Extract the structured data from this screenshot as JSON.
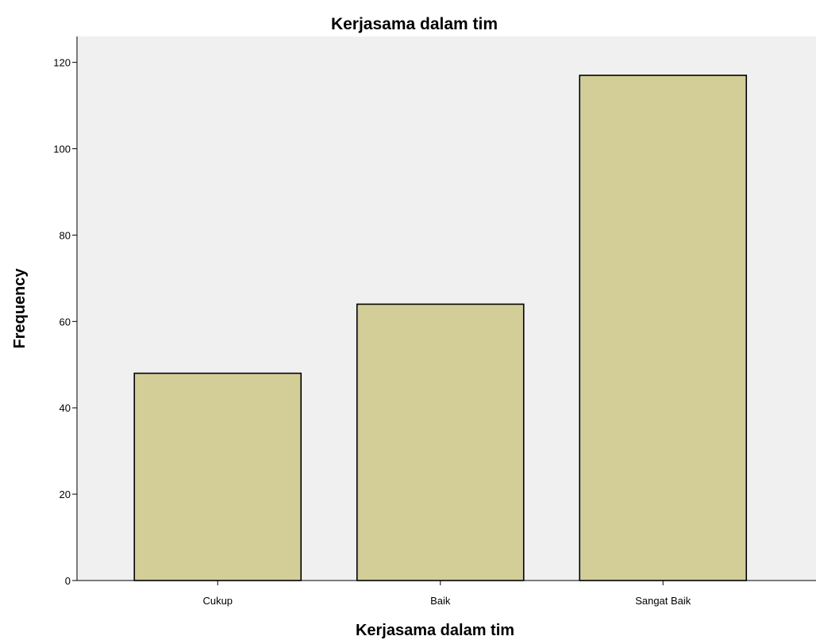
{
  "chart_data": {
    "type": "bar",
    "title": "Kerjasama dalam tim",
    "xlabel": "Kerjasama dalam tim",
    "ylabel": "Frequency",
    "categories": [
      "Cukup",
      "Baik",
      "Sangat Baik"
    ],
    "values": [
      48,
      64,
      117
    ],
    "ylim": [
      0,
      126
    ],
    "yticks": [
      0,
      20,
      40,
      60,
      80,
      100,
      120
    ],
    "grid": false,
    "legend": "none",
    "colors": {
      "bar_fill": "#d3ce97",
      "bar_stroke": "#000000",
      "plot_background": "#f0f0f0",
      "page_background": "#ffffff"
    }
  }
}
